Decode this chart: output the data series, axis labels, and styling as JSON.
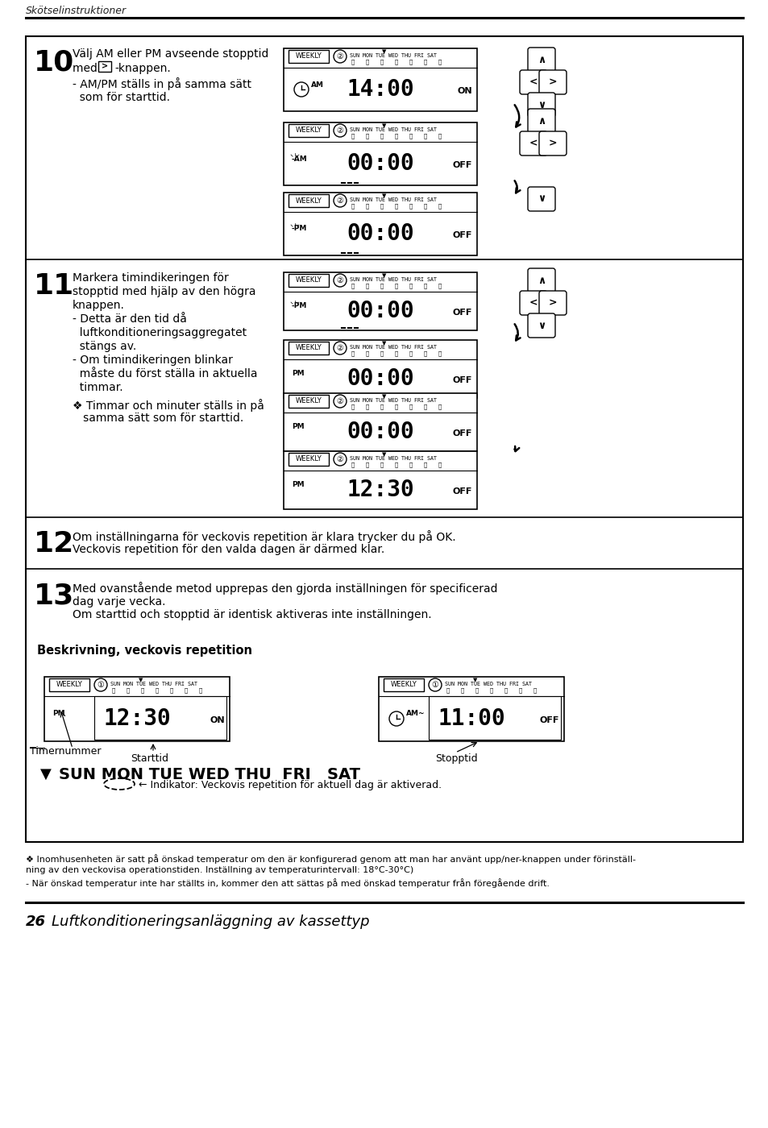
{
  "page_header": "Skötselinstruktioner",
  "page_footer_num": "26",
  "page_footer_text": "Luftkonditioneringsanläggning av kassettyp",
  "bg_color": "#ffffff",
  "s10_line1": "Välj AM eller PM avseende stopptid",
  "s10_line2": "med       -knappen.",
  "s10_line3": "- AM/PM ställs in på samma sätt",
  "s10_line4": "  som för starttid.",
  "s11_line1": "Markera timindikeringen för",
  "s11_line2": "stopptid med hjälp av den högra",
  "s11_line3": "knappen.",
  "s11_line4": "- Detta är den tid då",
  "s11_line5": "  luftkonditioneringsaggregatet",
  "s11_line6": "  stängs av.",
  "s11_line7": "- Om timindikeringen blinkar",
  "s11_line8": "  måste du först ställa in aktuella",
  "s11_line9": "  timmar.",
  "s11_note1": "❖ Timmar och minuter ställs in på",
  "s11_note2": "   samma sätt som för starttid.",
  "s12_line1": "Om inställningarna för veckovis repetition är klara trycker du på OK.",
  "s12_line2": "Veckovis repetition för den valda dagen är därmed klar.",
  "s13_line1": "Med ovanstående metod upprepas den gjorda inställningen för specificerad",
  "s13_line2": "dag varje vecka.",
  "s13_line3": "Om starttid och stopptid är identisk aktiveras inte inställningen.",
  "beskr_title": "Beskrivning, veckovis repetition",
  "timernummer": "Timernummer",
  "starttid": "Starttid",
  "stopptid": "Stopptid",
  "weekday_line": "SUN MON TUE WED THU  FRI   SAT",
  "indikator": "← Indikator: Veckovis repetition för aktuell dag är aktiverad.",
  "fn1": "❖ Inomhusenheten är satt på önskad temperatur om den är konfigurerad genom att man har använt upp/ner-knappen under förinställ-",
  "fn2": "ning av den veckovisa operationstiden. Inställning av temperaturintervall: 18°C-30°C)",
  "fn3": "- När önskad temperatur inte har ställts in, kommer den att sättas på med önskad temperatur från föregående drift."
}
